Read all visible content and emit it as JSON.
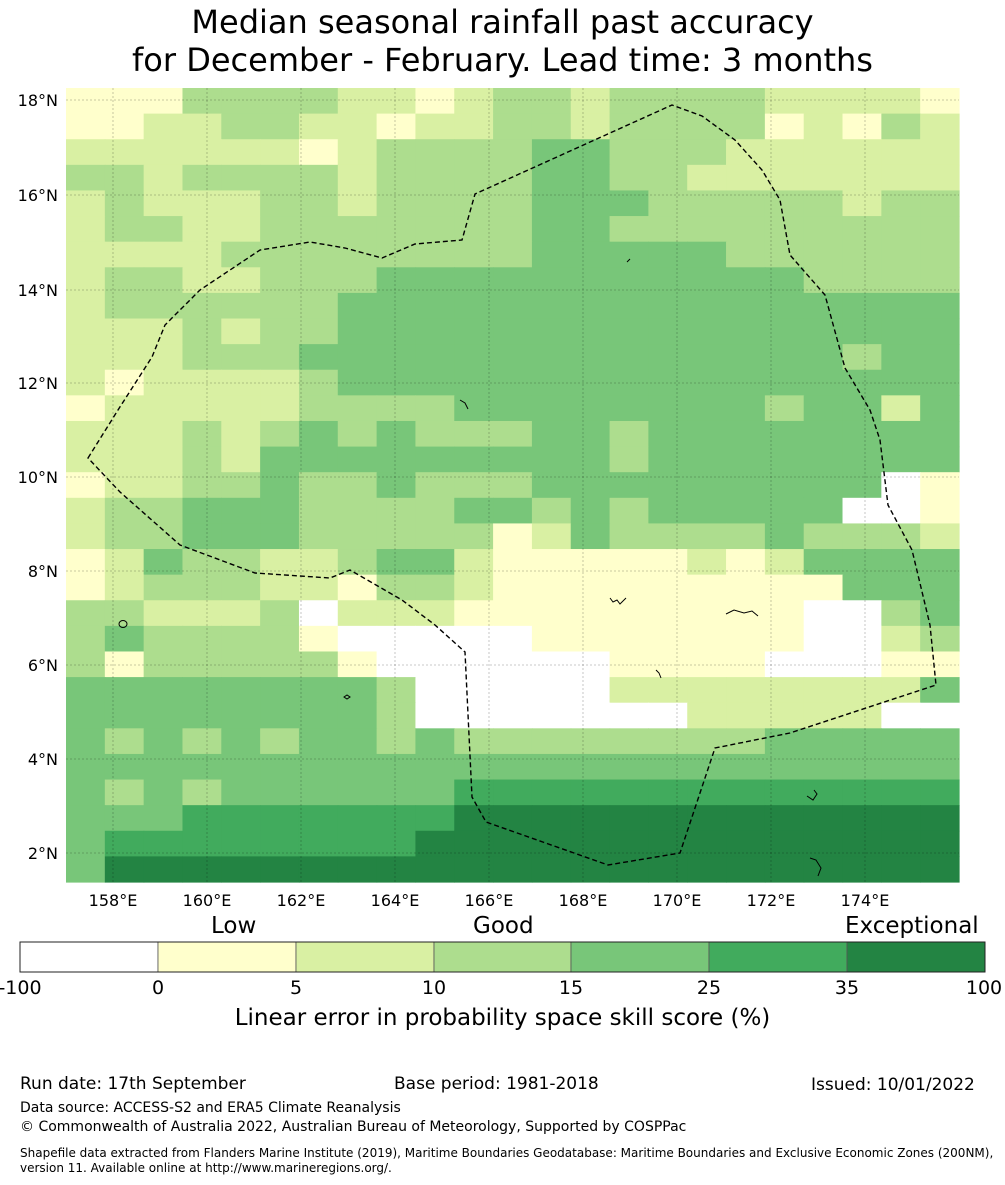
{
  "title": {
    "line1": "Median seasonal rainfall past accuracy",
    "line2": "for December - February. Lead time: 3 months"
  },
  "map": {
    "lat_range": [
      1.4,
      18.3
    ],
    "lon_range": [
      157.0,
      176.0
    ],
    "lat_ticks": [
      "18°N",
      "16°N",
      "14°N",
      "12°N",
      "10°N",
      "8°N",
      "6°N",
      "4°N",
      "2°N"
    ],
    "lon_ticks": [
      "158°E",
      "160°E",
      "162°E",
      "164°E",
      "166°E",
      "168°E",
      "170°E",
      "172°E",
      "174°E"
    ],
    "grid_lines": true,
    "eez_boundary": "dashed",
    "category_colors": [
      "#ffffff",
      "#ffffcc",
      "#d9f0a3",
      "#addd8e",
      "#78c679",
      "#41ab5d",
      "#238443"
    ]
  },
  "colorbar": {
    "categories": {
      "low": "Low",
      "good": "Good",
      "exceptional": "Exceptional"
    },
    "ticks": [
      "-100",
      "0",
      "5",
      "10",
      "15",
      "25",
      "35",
      "100"
    ],
    "label": "Linear error in probability space skill score (%)"
  },
  "footer": {
    "run_date": "Run date: 17th September",
    "base_period": "Base period: 1981-2018",
    "issued": "Issued: 10/01/2022",
    "data_source": "Data source: ACCESS-S2 and ERA5 Climate Reanalysis",
    "copyright": "© Commonwealth of Australia 2022, Australian Bureau of Meteorology, Supported by COSPPac",
    "shapefile": "Shapefile data extracted from Flanders Marine Institute (2019), Maritime Boundaries Geodatabase: Maritime Boundaries and Exclusive Economic Zones (200NM), version 11. Available online at http://www.marineregions.org/."
  }
}
